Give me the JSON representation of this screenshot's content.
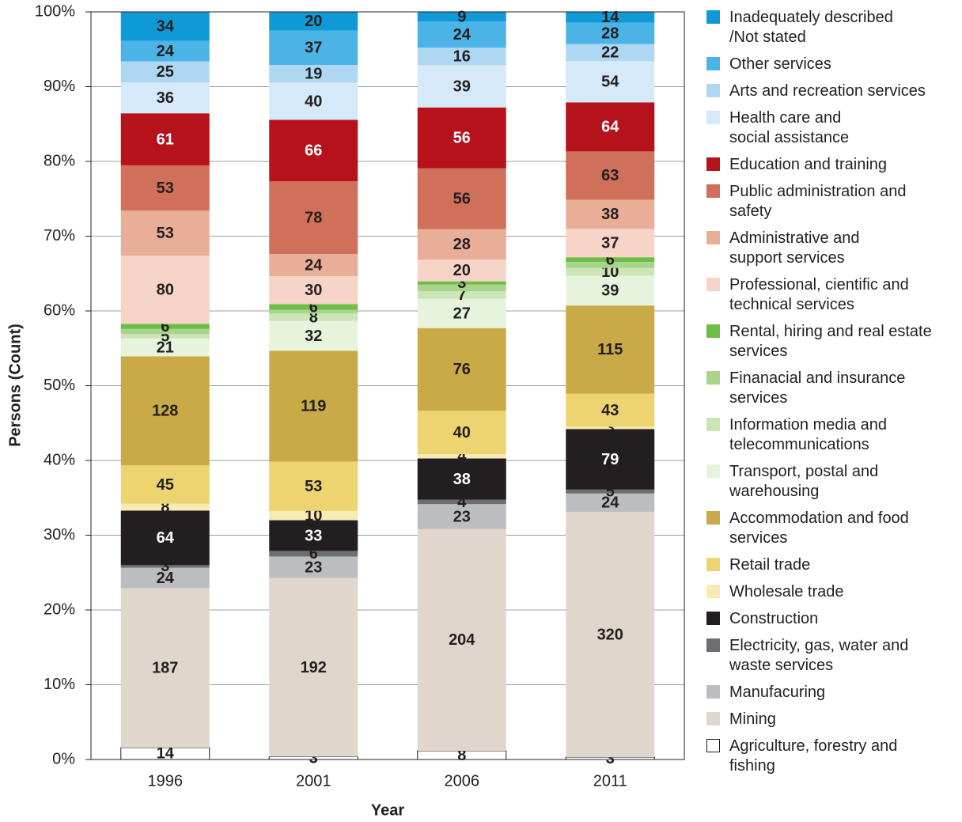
{
  "chart_data": {
    "type": "stacked_bar",
    "stacking": "percent",
    "x_label": "Year",
    "y_label": "Persons (Count)",
    "categories": [
      "1996",
      "2001",
      "2006",
      "2011"
    ],
    "ylim": [
      0,
      100
    ],
    "yticks": [
      {
        "value": 0,
        "label": "0%"
      },
      {
        "value": 10,
        "label": "10%"
      },
      {
        "value": 20,
        "label": "20%"
      },
      {
        "value": 30,
        "label": "30%"
      },
      {
        "value": 40,
        "label": "40%"
      },
      {
        "value": 50,
        "label": "50%"
      },
      {
        "value": 60,
        "label": "60%"
      },
      {
        "value": 70,
        "label": "70%"
      },
      {
        "value": 80,
        "label": "80%"
      },
      {
        "value": 90,
        "label": "90%"
      },
      {
        "value": 100,
        "label": "100%"
      }
    ],
    "grid": true,
    "series": [
      {
        "name": "Agriculture, forestry and\nfishing",
        "color": "#ffffff",
        "values": [
          14,
          3,
          8,
          3
        ]
      },
      {
        "name": "Mining",
        "color": "#e0d6cb",
        "values": [
          187,
          192,
          204,
          320
        ]
      },
      {
        "name": "Manufacuring",
        "color": "#bcbdc0",
        "values": [
          24,
          23,
          23,
          24
        ]
      },
      {
        "name": "Electricity, gas, water and\nwaste services",
        "color": "#6d6e71",
        "values": [
          3,
          6,
          4,
          5
        ]
      },
      {
        "name": "Construction",
        "color": "#231f20",
        "values": [
          64,
          33,
          38,
          79
        ]
      },
      {
        "name": "Wholesale trade",
        "color": "#f7eab2",
        "values": [
          8,
          10,
          4,
          3
        ]
      },
      {
        "name": "Retail trade",
        "color": "#edd470",
        "values": [
          45,
          53,
          40,
          43
        ]
      },
      {
        "name": "Accommodation and food\nservices",
        "color": "#c9aa46",
        "values": [
          128,
          119,
          76,
          115
        ]
      },
      {
        "name": "Transport, postal and\nwarehousing",
        "color": "#e7f3dd",
        "values": [
          21,
          32,
          27,
          39
        ]
      },
      {
        "name": "Information media and\ntelecommunications",
        "color": "#cbe5b6",
        "values": [
          5,
          8,
          7,
          10
        ]
      },
      {
        "name": "Finanacial and insurance\nservices",
        "color": "#a8d48b",
        "values": [
          6,
          4,
          6,
          8
        ],
        "value_labels": [
          null,
          null,
          null,
          null
        ]
      },
      {
        "name": "Rental, hiring and real estate\nservices",
        "color": "#6dbd46",
        "values": [
          6,
          6,
          3,
          6
        ]
      },
      {
        "name": "Professional, cientific and\ntechnical services",
        "color": "#f6d4c7",
        "values": [
          80,
          30,
          20,
          37
        ]
      },
      {
        "name": "Administrative and\nsupport services",
        "color": "#e8ae98",
        "values": [
          53,
          24,
          28,
          38
        ]
      },
      {
        "name": "Public administration and\nsafety",
        "color": "#d0705a",
        "values": [
          53,
          78,
          56,
          63
        ]
      },
      {
        "name": "Education and training",
        "color": "#b5121b",
        "values": [
          61,
          66,
          56,
          64
        ]
      },
      {
        "name": "Health care and\nsocial assistance",
        "color": "#d5e9f8",
        "values": [
          36,
          40,
          39,
          54
        ]
      },
      {
        "name": "Arts and recreation services",
        "color": "#aed7f2",
        "values": [
          25,
          19,
          16,
          22
        ]
      },
      {
        "name": "Other services",
        "color": "#4bb3e6",
        "values": [
          24,
          37,
          24,
          28
        ]
      },
      {
        "name": "Inadequately described\n/Not stated",
        "color": "#0f9ad7",
        "values": [
          34,
          20,
          9,
          14
        ]
      }
    ]
  }
}
